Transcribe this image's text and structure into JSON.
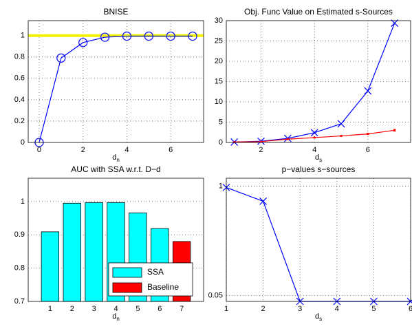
{
  "chart_data": [
    {
      "type": "line",
      "title": "BNISE",
      "xlabel": "d",
      "xlabel_sub": "n",
      "x": [
        0,
        1,
        2,
        3,
        4,
        5,
        6,
        7
      ],
      "series": [
        {
          "color": "#0000ff",
          "marker": "o",
          "values": [
            0,
            0.79,
            0.935,
            0.985,
            0.995,
            0.995,
            0.995,
            0.995
          ]
        }
      ],
      "reference_line": 1,
      "reference_color": "#f2f200",
      "xlim": [
        -0.5,
        7.5
      ],
      "xticks": [
        0,
        2,
        4,
        6
      ],
      "ylim": [
        0,
        1.14
      ],
      "yticks": [
        0,
        0.2,
        0.4,
        0.6,
        0.8,
        1
      ],
      "grid": true
    },
    {
      "type": "line",
      "title": "Obj. Func Value on Estimated s-Sources",
      "xlabel": "d",
      "xlabel_sub": "s",
      "x": [
        1,
        2,
        3,
        4,
        5,
        6,
        7
      ],
      "series": [
        {
          "color": "#0000ff",
          "marker": "x",
          "values": [
            0.1,
            0.3,
            1.0,
            2.4,
            4.6,
            12.7,
            29.4
          ]
        },
        {
          "color": "#ff0000",
          "marker": ".",
          "values": [
            0.1,
            0.2,
            0.8,
            1.2,
            1.6,
            2.1,
            3.0
          ],
          "errors": [
            0.02,
            0.03,
            0.05,
            0.1,
            0.1,
            0.15,
            0.2
          ]
        }
      ],
      "xlim": [
        0.7,
        7.6
      ],
      "xticks": [
        2,
        4,
        6
      ],
      "ylim": [
        0,
        30
      ],
      "yticks": [
        0,
        5,
        10,
        15,
        20,
        25,
        30
      ],
      "grid": true
    },
    {
      "type": "bar",
      "title": "AUC with SSA w.r.t. D−d",
      "xlabel": "d",
      "xlabel_sub": "n",
      "x": [
        1,
        2,
        3,
        4,
        5,
        6,
        7
      ],
      "series": [
        {
          "name": "SSA",
          "color": "#00ffff",
          "values": [
            0.909,
            0.995,
            0.997,
            0.997,
            0.966,
            0.919,
            null
          ]
        },
        {
          "name": "Baseline",
          "color": "#ff0000",
          "values": [
            null,
            null,
            null,
            null,
            null,
            null,
            0.88
          ]
        }
      ],
      "xlim": [
        0,
        8
      ],
      "xticks": [
        1,
        2,
        3,
        4,
        5,
        6,
        7
      ],
      "ylim": [
        0.7,
        1.07
      ],
      "yticks": [
        0.7,
        0.8,
        0.9,
        1
      ],
      "grid": true,
      "legend": "lower right"
    },
    {
      "type": "line",
      "title": "p−values s−sources",
      "xlabel": "d",
      "xlabel_sub": "s",
      "x": [
        1,
        2,
        3,
        4,
        5,
        6
      ],
      "series": [
        {
          "color": "#0000ff",
          "marker": "x",
          "values": [
            0.99,
            0.87,
            0,
            0,
            0,
            0
          ]
        }
      ],
      "xlim": [
        1,
        6
      ],
      "xticks": [
        1,
        2,
        3,
        4,
        5,
        6
      ],
      "ylim": [
        0,
        1.07
      ],
      "yticks": [
        0.05,
        1
      ],
      "grid": true
    }
  ]
}
